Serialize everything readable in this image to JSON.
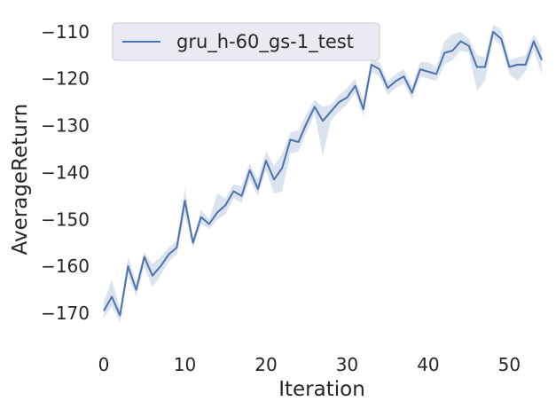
{
  "chart_data": {
    "type": "line",
    "xlabel": "Iteration",
    "ylabel": "AverageReturn",
    "xlim": [
      0,
      54
    ],
    "ylim": [
      -177,
      -107
    ],
    "xticks": [
      0,
      10,
      20,
      30,
      40,
      50
    ],
    "yticks": [
      -170,
      -160,
      -150,
      -140,
      -130,
      -120,
      -110
    ],
    "xtick_labels": [
      "0",
      "10",
      "20",
      "30",
      "40",
      "50"
    ],
    "ytick_labels": [
      "−170",
      "−160",
      "−150",
      "−140",
      "−130",
      "−120",
      "−110"
    ],
    "grid": false,
    "legend_position": "top-left",
    "background": "#ffffff",
    "series": [
      {
        "name": "gru_h-60_gs-1_test",
        "color": "#4c72b0",
        "band_color": "#4c72b0",
        "x": [
          0,
          1,
          2,
          3,
          4,
          5,
          6,
          7,
          8,
          9,
          10,
          11,
          12,
          13,
          14,
          15,
          16,
          17,
          18,
          19,
          20,
          21,
          22,
          23,
          24,
          25,
          26,
          27,
          28,
          29,
          30,
          31,
          32,
          33,
          34,
          35,
          36,
          37,
          38,
          39,
          40,
          41,
          42,
          43,
          44,
          45,
          46,
          47,
          48,
          49,
          50,
          51,
          52,
          53,
          54
        ],
        "values": [
          -169.5,
          -166.5,
          -170.5,
          -160.0,
          -165.0,
          -158.0,
          -162.0,
          -160.0,
          -157.5,
          -156.0,
          -146.0,
          -155.0,
          -149.5,
          -151.0,
          -148.5,
          -147.0,
          -144.0,
          -145.0,
          -139.5,
          -143.5,
          -137.5,
          -141.5,
          -139.0,
          -133.0,
          -133.5,
          -129.5,
          -126.0,
          -129.0,
          -127.0,
          -125.0,
          -124.0,
          -121.5,
          -126.5,
          -117.0,
          -118.0,
          -122.0,
          -120.5,
          -119.5,
          -123.0,
          -118.0,
          -118.5,
          -119.0,
          -114.5,
          -114.0,
          -112.0,
          -113.0,
          -117.5,
          -117.5,
          -110.0,
          -111.5,
          -117.5,
          -117.0,
          -117.0,
          -112.0,
          -116.0
        ],
        "band_lower": [
          -171.0,
          -168.5,
          -172.0,
          -162.0,
          -166.5,
          -160.0,
          -164.5,
          -162.0,
          -159.0,
          -157.5,
          -149.0,
          -156.0,
          -151.0,
          -152.0,
          -150.0,
          -149.0,
          -145.5,
          -146.5,
          -141.5,
          -145.0,
          -139.5,
          -144.5,
          -144.0,
          -136.0,
          -135.5,
          -131.5,
          -127.5,
          -136.5,
          -129.0,
          -127.0,
          -125.5,
          -123.0,
          -128.0,
          -118.5,
          -119.5,
          -123.5,
          -122.0,
          -121.0,
          -124.5,
          -119.5,
          -120.0,
          -120.5,
          -117.0,
          -116.0,
          -114.0,
          -114.5,
          -122.5,
          -120.5,
          -111.5,
          -113.0,
          -119.0,
          -120.5,
          -118.5,
          -114.0,
          -119.0
        ],
        "band_upper": [
          -167.5,
          -163.0,
          -169.0,
          -158.0,
          -163.5,
          -157.0,
          -159.5,
          -158.0,
          -156.0,
          -154.5,
          -143.5,
          -154.0,
          -148.0,
          -150.0,
          -144.5,
          -145.5,
          -142.5,
          -143.0,
          -138.0,
          -141.5,
          -135.5,
          -138.5,
          -136.0,
          -131.5,
          -131.0,
          -127.5,
          -124.5,
          -126.0,
          -125.5,
          -123.5,
          -122.0,
          -120.0,
          -124.5,
          -115.5,
          -116.5,
          -120.5,
          -119.0,
          -118.0,
          -121.5,
          -116.5,
          -116.5,
          -117.5,
          -112.0,
          -110.5,
          -110.0,
          -111.5,
          -115.0,
          -115.5,
          -108.5,
          -109.5,
          -116.0,
          -115.5,
          -115.0,
          -110.5,
          -113.5
        ]
      }
    ]
  }
}
